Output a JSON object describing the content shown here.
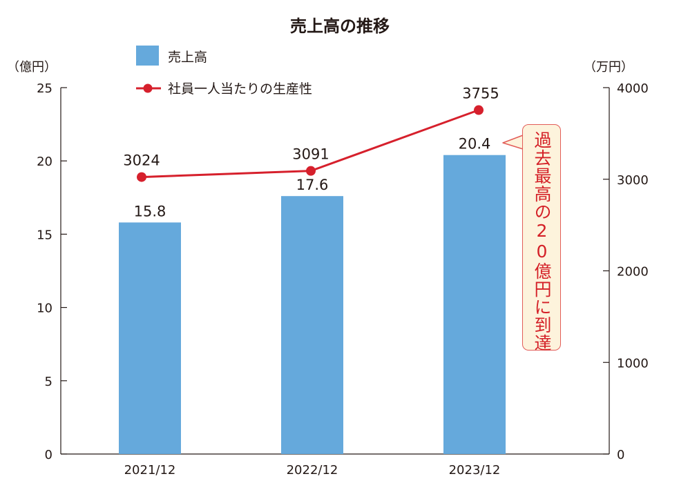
{
  "chart_data": {
    "type": "bar+line",
    "title": "売上高の推移",
    "categories": [
      "2021/12",
      "2022/12",
      "2023/12"
    ],
    "series": [
      {
        "name": "売上高",
        "type": "bar",
        "axis": "left",
        "color": "#65a9dc",
        "values": [
          15.8,
          17.6,
          20.4
        ],
        "labels": [
          "15.8",
          "17.6",
          "20.4"
        ]
      },
      {
        "name": "社員一人当たりの生産性",
        "type": "line",
        "axis": "right",
        "color": "#d6202c",
        "values": [
          3024,
          3091,
          3755
        ],
        "labels": [
          "3024",
          "3091",
          "3755"
        ]
      }
    ],
    "left_axis": {
      "unit": "（億円）",
      "ylim": [
        0,
        25
      ],
      "ticks": [
        0,
        5,
        10,
        15,
        20,
        25
      ]
    },
    "right_axis": {
      "unit": "（万円）",
      "ylim": [
        0,
        4000
      ],
      "ticks": [
        0,
        1000,
        2000,
        3000,
        4000
      ]
    },
    "legend_position": "top-left",
    "annotation": "過去最高の20億円に到達",
    "grid": false
  }
}
